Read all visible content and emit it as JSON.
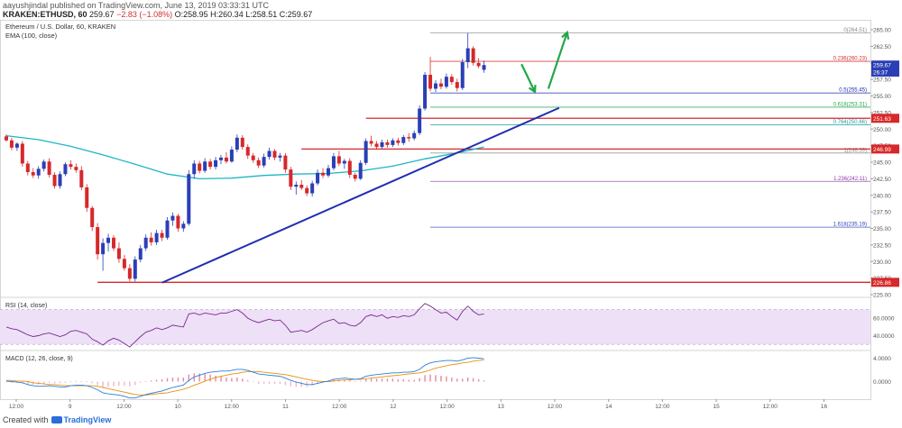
{
  "header": {
    "published": "aayushjindal published on TradingView.com, June 13, 2019 03:33:31 UTC",
    "symbol": "KRAKEN:ETHUSD, 60",
    "last": "259.67",
    "change": "−2.83 (−1.08%)",
    "ohlc": "O:258.95 H:260.34 L:258.51 C:259.67"
  },
  "footer": {
    "created_with": "Created with",
    "brand": "TradingView"
  },
  "colors": {
    "bull": "#2a3fb5",
    "bear": "#d7282a",
    "ema": "#1fb5c4",
    "trend": "#1f2fb0",
    "hline": "#d7282a",
    "arrow": "#22a64a",
    "rsi": "#7b2a8c",
    "rsi_band": "#ede0f7",
    "macd": "#2a7fd8",
    "signal": "#e8900f"
  },
  "chart_data": [
    {
      "type": "candlestick",
      "title": "Ethereum / U.S. Dollar, 60, KRAKEN",
      "indicator": "EMA (100, close)",
      "ylim": [
        225,
        266.5
      ],
      "yticks": [
        "265.00",
        "262.50",
        "260.00",
        "257.50",
        "255.00",
        "252.50",
        "250.00",
        "247.50",
        "245.00",
        "242.50",
        "240.00",
        "237.50",
        "235.00",
        "232.50",
        "230.00",
        "227.50",
        "225.00"
      ],
      "xticks": [
        "12:00",
        "9",
        "12:00",
        "10",
        "12:00",
        "11",
        "12:00",
        "12",
        "12:00",
        "13",
        "12:00",
        "14",
        "12:00",
        "15",
        "12:00",
        "16"
      ],
      "price_tags": [
        {
          "label": "259.67",
          "value": 259.67,
          "kind": "last"
        },
        {
          "label": "26:37",
          "value": 258.6,
          "kind": "timer"
        },
        {
          "label": "251.63",
          "value": 251.63,
          "kind": "red"
        },
        {
          "label": "246.99",
          "value": 246.99,
          "kind": "red"
        },
        {
          "label": "226.86",
          "value": 226.86,
          "kind": "red"
        }
      ],
      "fib_levels": [
        {
          "label": "0(264.51)",
          "ratio": 0,
          "value": 264.51
        },
        {
          "label": "0.236(260.23)",
          "ratio": 0.236,
          "value": 260.23
        },
        {
          "label": "0.5(255.45)",
          "ratio": 0.5,
          "value": 255.45
        },
        {
          "label": "0.618(253.31)",
          "ratio": 0.618,
          "value": 253.31
        },
        {
          "label": "0.764(250.66)",
          "ratio": 0.764,
          "value": 250.66
        },
        {
          "label": "1(246.39)",
          "ratio": 1,
          "value": 246.39
        },
        {
          "label": "1.236(242.11)",
          "ratio": 1.236,
          "value": 242.11
        },
        {
          "label": "1.618(235.19)",
          "ratio": 1.618,
          "value": 235.19
        }
      ],
      "horizontal_lines": [
        {
          "value": 251.63,
          "from_bar": 67,
          "to_bar": 143
        },
        {
          "value": 246.99,
          "from_bar": 55,
          "to_bar": 143
        },
        {
          "value": 226.86,
          "from_bar": 17,
          "to_bar": 143
        }
      ],
      "trendline": {
        "from": [
          29,
          226.8
        ],
        "to": [
          103,
          253.2
        ]
      },
      "arrows": [
        {
          "from": [
            96,
            259.8
          ],
          "to": [
            98.5,
            255.6
          ]
        },
        {
          "from": [
            101,
            256.1
          ],
          "to": [
            104.5,
            264.6
          ]
        }
      ],
      "candles": [
        [
          248.9,
          249.2,
          248.1,
          248.3
        ],
        [
          248.3,
          248.7,
          246.8,
          247.2
        ],
        [
          247.2,
          248.0,
          246.7,
          247.8
        ],
        [
          247.8,
          248.2,
          244.3,
          244.8
        ],
        [
          244.8,
          245.2,
          243.0,
          243.5
        ],
        [
          243.5,
          244.1,
          242.6,
          243.0
        ],
        [
          243.0,
          244.4,
          242.5,
          244.0
        ],
        [
          244.0,
          245.4,
          243.6,
          245.1
        ],
        [
          245.1,
          245.6,
          242.7,
          243.1
        ],
        [
          243.1,
          243.5,
          241.0,
          241.4
        ],
        [
          241.4,
          243.6,
          241.0,
          243.2
        ],
        [
          243.2,
          245.0,
          242.9,
          244.7
        ],
        [
          244.7,
          245.3,
          243.9,
          244.3
        ],
        [
          244.3,
          244.8,
          243.4,
          243.8
        ],
        [
          243.8,
          244.4,
          240.8,
          241.2
        ],
        [
          241.2,
          241.7,
          237.5,
          238.1
        ],
        [
          238.1,
          238.4,
          234.6,
          235.2
        ],
        [
          235.2,
          235.8,
          230.3,
          231.1
        ],
        [
          231.1,
          233.5,
          228.6,
          232.8
        ],
        [
          232.8,
          234.2,
          231.5,
          233.6
        ],
        [
          233.6,
          234.0,
          231.6,
          232.0
        ],
        [
          232.0,
          232.9,
          229.8,
          230.4
        ],
        [
          230.4,
          231.0,
          228.6,
          229.0
        ],
        [
          229.0,
          229.6,
          227.0,
          227.4
        ],
        [
          227.4,
          230.8,
          227.0,
          230.3
        ],
        [
          230.3,
          232.5,
          229.9,
          232.0
        ],
        [
          232.0,
          234.1,
          231.6,
          233.6
        ],
        [
          233.6,
          234.4,
          232.4,
          232.9
        ],
        [
          232.9,
          234.8,
          232.5,
          234.3
        ],
        [
          234.3,
          234.8,
          233.1,
          233.6
        ],
        [
          233.6,
          236.7,
          233.3,
          236.2
        ],
        [
          236.2,
          237.4,
          235.4,
          236.9
        ],
        [
          236.9,
          237.2,
          234.5,
          235.0
        ],
        [
          235.0,
          236.1,
          234.5,
          235.7
        ],
        [
          235.7,
          243.8,
          235.4,
          243.2
        ],
        [
          243.2,
          245.3,
          242.5,
          244.8
        ],
        [
          244.8,
          245.2,
          243.3,
          243.7
        ],
        [
          243.7,
          245.6,
          243.4,
          245.1
        ],
        [
          245.1,
          245.5,
          243.9,
          244.3
        ],
        [
          244.3,
          245.8,
          243.9,
          245.3
        ],
        [
          245.3,
          246.1,
          244.7,
          245.7
        ],
        [
          245.7,
          246.5,
          244.8,
          245.1
        ],
        [
          245.1,
          247.4,
          244.9,
          246.9
        ],
        [
          246.9,
          249.2,
          246.5,
          248.7
        ],
        [
          248.7,
          249.1,
          246.9,
          247.3
        ],
        [
          247.3,
          247.7,
          245.5,
          246.0
        ],
        [
          246.0,
          246.4,
          244.9,
          245.3
        ],
        [
          245.3,
          245.7,
          244.1,
          244.5
        ],
        [
          244.5,
          246.3,
          244.2,
          245.8
        ],
        [
          245.8,
          247.2,
          245.4,
          246.7
        ],
        [
          246.7,
          247.0,
          245.3,
          245.7
        ],
        [
          245.7,
          246.4,
          245.1,
          246.0
        ],
        [
          246.0,
          246.4,
          243.4,
          243.9
        ],
        [
          243.9,
          244.3,
          240.8,
          241.3
        ],
        [
          241.3,
          242.1,
          240.1,
          241.6
        ],
        [
          241.6,
          242.3,
          240.8,
          241.1
        ],
        [
          241.1,
          241.5,
          239.9,
          240.3
        ],
        [
          240.3,
          242.2,
          239.8,
          241.8
        ],
        [
          241.8,
          243.9,
          241.5,
          243.4
        ],
        [
          243.4,
          244.1,
          242.6,
          243.0
        ],
        [
          243.0,
          244.6,
          242.7,
          244.1
        ],
        [
          244.1,
          246.4,
          243.8,
          245.9
        ],
        [
          245.9,
          246.7,
          244.4,
          244.8
        ],
        [
          244.8,
          245.5,
          244.0,
          245.2
        ],
        [
          245.2,
          245.6,
          242.6,
          243.1
        ],
        [
          243.1,
          243.4,
          242.1,
          242.5
        ],
        [
          242.5,
          245.3,
          242.3,
          244.9
        ],
        [
          244.9,
          248.6,
          244.6,
          248.2
        ],
        [
          248.2,
          249.0,
          247.4,
          247.8
        ],
        [
          247.8,
          248.2,
          246.9,
          247.3
        ],
        [
          247.3,
          248.4,
          247.0,
          248.0
        ],
        [
          248.0,
          248.4,
          247.2,
          247.6
        ],
        [
          247.6,
          248.6,
          247.3,
          248.3
        ],
        [
          248.3,
          248.7,
          247.5,
          247.9
        ],
        [
          247.9,
          249.1,
          247.6,
          248.8
        ],
        [
          248.8,
          249.4,
          248.1,
          248.6
        ],
        [
          248.6,
          249.8,
          248.3,
          249.4
        ],
        [
          249.4,
          253.6,
          249.1,
          253.1
        ],
        [
          253.1,
          258.6,
          252.8,
          258.2
        ],
        [
          258.2,
          260.9,
          255.7,
          256.1
        ],
        [
          256.1,
          257.4,
          255.6,
          256.9
        ],
        [
          256.9,
          257.6,
          256.0,
          256.4
        ],
        [
          256.4,
          258.4,
          256.1,
          257.9
        ],
        [
          257.9,
          258.3,
          256.7,
          257.1
        ],
        [
          257.1,
          257.6,
          255.7,
          256.2
        ],
        [
          256.2,
          260.6,
          255.9,
          260.1
        ],
        [
          260.1,
          264.51,
          259.2,
          262.2
        ],
        [
          262.2,
          262.5,
          259.6,
          260.0
        ],
        [
          260.0,
          260.7,
          259.2,
          259.5
        ],
        [
          258.95,
          260.34,
          258.51,
          259.67
        ]
      ],
      "ema": [
        [
          0,
          249.0
        ],
        [
          6,
          248.4
        ],
        [
          12,
          247.4
        ],
        [
          18,
          246.1
        ],
        [
          24,
          244.7
        ],
        [
          30,
          243.2
        ],
        [
          36,
          242.5
        ],
        [
          42,
          242.6
        ],
        [
          48,
          243.0
        ],
        [
          54,
          243.2
        ],
        [
          60,
          243.3
        ],
        [
          66,
          243.7
        ],
        [
          72,
          244.4
        ],
        [
          78,
          245.5
        ],
        [
          84,
          246.4
        ],
        [
          89,
          247.3
        ]
      ]
    },
    {
      "type": "line",
      "title": "RSI (14, close)",
      "ylim": [
        25,
        82
      ],
      "yticks": [
        "60.0000",
        "40.0000"
      ],
      "band": [
        30,
        70
      ],
      "values": [
        50,
        48,
        47,
        44,
        41,
        39,
        40,
        42,
        43,
        41,
        39,
        41,
        45,
        46,
        44,
        42,
        36,
        33,
        29,
        34,
        37,
        35,
        31,
        27,
        33,
        39,
        44,
        46,
        49,
        47,
        49,
        52,
        51,
        50,
        65,
        66,
        64,
        66,
        65,
        64,
        66,
        66,
        68,
        70,
        66,
        60,
        57,
        55,
        57,
        59,
        57,
        58,
        52,
        44,
        45,
        46,
        44,
        47,
        51,
        55,
        57,
        59,
        54,
        55,
        52,
        51,
        55,
        62,
        64,
        62,
        64,
        60,
        62,
        61,
        63,
        62,
        64,
        71,
        77,
        74,
        70,
        66,
        67,
        62,
        58,
        68,
        74,
        68,
        64,
        65
      ]
    },
    {
      "type": "line",
      "title": "MACD (12, 26, close, 9)",
      "ylim": [
        -3,
        5
      ],
      "yticks": [
        "4.0000",
        "0.0000"
      ],
      "series": [
        {
          "values": [
            0.1,
            0.0,
            -0.1,
            -0.2,
            -0.5,
            -0.7,
            -0.8,
            -0.8,
            -0.7,
            -0.8,
            -0.9,
            -0.9,
            -0.7,
            -0.6,
            -0.6,
            -0.7,
            -1.0,
            -1.4,
            -1.9,
            -2.1,
            -2.2,
            -2.3,
            -2.5,
            -2.8,
            -2.8,
            -2.5,
            -2.2,
            -2.0,
            -1.8,
            -1.6,
            -1.3,
            -1.0,
            -0.8,
            -0.6,
            0.2,
            0.8,
            1.1,
            1.4,
            1.6,
            1.7,
            1.8,
            1.8,
            1.9,
            2.1,
            2.1,
            1.9,
            1.6,
            1.3,
            1.2,
            1.1,
            1.0,
            0.9,
            0.6,
            0.2,
            -0.1,
            -0.3,
            -0.5,
            -0.5,
            -0.3,
            -0.1,
            0.1,
            0.4,
            0.5,
            0.6,
            0.5,
            0.4,
            0.5,
            0.9,
            1.1,
            1.2,
            1.3,
            1.4,
            1.5,
            1.5,
            1.6,
            1.6,
            1.7,
            2.1,
            2.8,
            3.2,
            3.4,
            3.5,
            3.6,
            3.6,
            3.5,
            3.7,
            4.0,
            4.1,
            4.0,
            3.9
          ]
        },
        {
          "values": [
            0.2,
            0.2,
            0.1,
            0.1,
            0.0,
            -0.2,
            -0.3,
            -0.4,
            -0.5,
            -0.5,
            -0.6,
            -0.7,
            -0.7,
            -0.7,
            -0.7,
            -0.7,
            -0.7,
            -0.8,
            -1.0,
            -1.2,
            -1.4,
            -1.6,
            -1.8,
            -2.0,
            -2.2,
            -2.3,
            -2.3,
            -2.2,
            -2.1,
            -2.0,
            -1.9,
            -1.7,
            -1.5,
            -1.3,
            -1.0,
            -0.6,
            -0.3,
            0.1,
            0.4,
            0.7,
            0.9,
            1.1,
            1.3,
            1.4,
            1.6,
            1.7,
            1.7,
            1.7,
            1.6,
            1.5,
            1.4,
            1.3,
            1.2,
            1.0,
            0.8,
            0.6,
            0.4,
            0.2,
            0.1,
            0.0,
            0.0,
            0.1,
            0.2,
            0.3,
            0.3,
            0.4,
            0.4,
            0.5,
            0.6,
            0.7,
            0.8,
            0.9,
            1.0,
            1.1,
            1.2,
            1.3,
            1.4,
            1.5,
            1.7,
            2.0,
            2.3,
            2.5,
            2.7,
            2.9,
            3.0,
            3.2,
            3.3,
            3.5,
            3.6,
            3.7
          ]
        }
      ]
    }
  ]
}
